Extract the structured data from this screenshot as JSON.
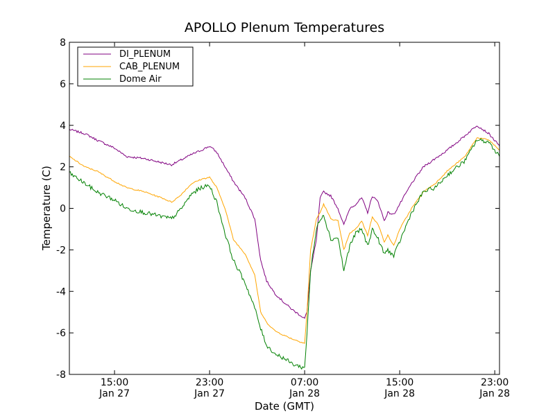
{
  "chart_data": {
    "type": "line",
    "title": "APOLLO Plenum Temperatures",
    "xlabel": "Date (GMT)",
    "ylabel": "Temperature (C)",
    "xlim": [
      -4.8,
      31.4
    ],
    "ylim": [
      -8,
      8
    ],
    "x_unit": "hours since Jan 27 11:00 GMT",
    "yticks": [
      -8,
      -6,
      -4,
      -2,
      0,
      2,
      4,
      6,
      8
    ],
    "ytick_labels": [
      "-8",
      "-6",
      "-4",
      "-2",
      "0",
      "2",
      "4",
      "6",
      "8"
    ],
    "xticks": [
      {
        "x": -1.0,
        "time": "15:00",
        "date": "Jan 27"
      },
      {
        "x": 7.0,
        "time": "23:00",
        "date": "Jan 27"
      },
      {
        "x": 15.0,
        "time": "07:00",
        "date": "Jan 28"
      },
      {
        "x": 23.0,
        "time": "15:00",
        "date": "Jan 28"
      },
      {
        "x": 31.0,
        "time": "23:00",
        "date": "Jan 28"
      }
    ],
    "legend_position": "top-left",
    "series": [
      {
        "name": "DI_PLENUM",
        "color": "#800080",
        "noise": 0.05,
        "points": [
          [
            -4.8,
            3.8
          ],
          [
            -3.5,
            3.6
          ],
          [
            -2.5,
            3.3
          ],
          [
            -1.0,
            2.9
          ],
          [
            0.0,
            2.5
          ],
          [
            1.5,
            2.4
          ],
          [
            3.0,
            2.2
          ],
          [
            3.8,
            2.1
          ],
          [
            4.5,
            2.3
          ],
          [
            5.5,
            2.6
          ],
          [
            6.3,
            2.8
          ],
          [
            7.0,
            3.0
          ],
          [
            7.6,
            2.7
          ],
          [
            8.3,
            2.0
          ],
          [
            9.0,
            1.3
          ],
          [
            10.0,
            0.5
          ],
          [
            10.8,
            -0.5
          ],
          [
            11.3,
            -2.5
          ],
          [
            11.8,
            -3.5
          ],
          [
            12.5,
            -4.1
          ],
          [
            13.2,
            -4.5
          ],
          [
            14.0,
            -4.9
          ],
          [
            14.5,
            -5.1
          ],
          [
            15.0,
            -5.3
          ],
          [
            15.2,
            -5.0
          ],
          [
            15.5,
            -3.0
          ],
          [
            16.0,
            -1.5
          ],
          [
            16.3,
            0.5
          ],
          [
            16.6,
            0.8
          ],
          [
            17.2,
            0.6
          ],
          [
            17.8,
            0.0
          ],
          [
            18.3,
            -0.8
          ],
          [
            18.8,
            0.0
          ],
          [
            19.3,
            0.2
          ],
          [
            19.8,
            0.5
          ],
          [
            20.3,
            -0.2
          ],
          [
            20.7,
            0.6
          ],
          [
            21.2,
            0.3
          ],
          [
            21.7,
            -0.6
          ],
          [
            22.0,
            -0.2
          ],
          [
            22.5,
            -0.3
          ],
          [
            23.0,
            0.2
          ],
          [
            24.0,
            1.2
          ],
          [
            25.0,
            2.0
          ],
          [
            26.0,
            2.4
          ],
          [
            27.0,
            2.8
          ],
          [
            28.5,
            3.5
          ],
          [
            29.5,
            4.0
          ],
          [
            30.5,
            3.6
          ],
          [
            31.4,
            3.0
          ]
        ]
      },
      {
        "name": "CAB_PLENUM",
        "color": "#ffa500",
        "noise": 0.03,
        "points": [
          [
            -4.8,
            2.5
          ],
          [
            -3.5,
            2.0
          ],
          [
            -2.5,
            1.8
          ],
          [
            -1.0,
            1.3
          ],
          [
            0.0,
            1.0
          ],
          [
            1.5,
            0.8
          ],
          [
            3.0,
            0.5
          ],
          [
            3.8,
            0.3
          ],
          [
            4.5,
            0.6
          ],
          [
            5.5,
            1.2
          ],
          [
            6.3,
            1.4
          ],
          [
            7.0,
            1.5
          ],
          [
            7.6,
            1.0
          ],
          [
            8.3,
            0.0
          ],
          [
            9.0,
            -1.5
          ],
          [
            10.0,
            -2.2
          ],
          [
            10.8,
            -3.2
          ],
          [
            11.3,
            -5.0
          ],
          [
            11.8,
            -5.5
          ],
          [
            12.5,
            -5.9
          ],
          [
            13.2,
            -6.1
          ],
          [
            14.0,
            -6.3
          ],
          [
            14.5,
            -6.4
          ],
          [
            15.0,
            -6.5
          ],
          [
            15.2,
            -5.0
          ],
          [
            15.5,
            -2.0
          ],
          [
            16.0,
            -0.5
          ],
          [
            16.3,
            -0.2
          ],
          [
            16.6,
            0.2
          ],
          [
            17.2,
            -0.5
          ],
          [
            17.8,
            -0.6
          ],
          [
            18.3,
            -2.0
          ],
          [
            18.8,
            -1.2
          ],
          [
            19.3,
            -1.0
          ],
          [
            19.8,
            -0.6
          ],
          [
            20.3,
            -1.3
          ],
          [
            20.7,
            -0.4
          ],
          [
            21.2,
            -0.8
          ],
          [
            21.7,
            -1.6
          ],
          [
            22.0,
            -1.3
          ],
          [
            22.5,
            -1.8
          ],
          [
            23.0,
            -1.0
          ],
          [
            24.0,
            0.0
          ],
          [
            25.0,
            0.8
          ],
          [
            26.0,
            1.2
          ],
          [
            27.0,
            1.8
          ],
          [
            28.5,
            2.5
          ],
          [
            29.5,
            3.4
          ],
          [
            30.5,
            3.3
          ],
          [
            31.4,
            2.8
          ]
        ]
      },
      {
        "name": "Dome Air",
        "color": "#008000",
        "noise": 0.1,
        "points": [
          [
            -4.8,
            1.7
          ],
          [
            -3.5,
            1.2
          ],
          [
            -2.5,
            0.8
          ],
          [
            -1.0,
            0.4
          ],
          [
            0.0,
            0.0
          ],
          [
            1.5,
            -0.2
          ],
          [
            3.0,
            -0.4
          ],
          [
            3.8,
            -0.5
          ],
          [
            4.5,
            -0.1
          ],
          [
            5.5,
            0.7
          ],
          [
            6.3,
            1.0
          ],
          [
            7.0,
            1.1
          ],
          [
            7.6,
            0.3
          ],
          [
            8.3,
            -1.2
          ],
          [
            9.0,
            -2.5
          ],
          [
            10.0,
            -3.6
          ],
          [
            10.8,
            -4.8
          ],
          [
            11.3,
            -5.8
          ],
          [
            11.8,
            -6.6
          ],
          [
            12.5,
            -7.0
          ],
          [
            13.2,
            -7.2
          ],
          [
            14.0,
            -7.5
          ],
          [
            14.5,
            -7.6
          ],
          [
            15.0,
            -7.7
          ],
          [
            15.2,
            -6.0
          ],
          [
            15.5,
            -3.0
          ],
          [
            16.0,
            -1.0
          ],
          [
            16.3,
            -0.5
          ],
          [
            16.6,
            -0.3
          ],
          [
            17.2,
            -1.5
          ],
          [
            17.8,
            -1.4
          ],
          [
            18.3,
            -3.0
          ],
          [
            18.8,
            -1.8
          ],
          [
            19.3,
            -1.2
          ],
          [
            19.8,
            -1.0
          ],
          [
            20.3,
            -1.8
          ],
          [
            20.7,
            -1.0
          ],
          [
            21.2,
            -1.5
          ],
          [
            21.7,
            -2.2
          ],
          [
            22.0,
            -2.0
          ],
          [
            22.5,
            -2.3
          ],
          [
            23.0,
            -1.6
          ],
          [
            24.0,
            -0.2
          ],
          [
            25.0,
            0.8
          ],
          [
            26.0,
            1.0
          ],
          [
            27.0,
            1.6
          ],
          [
            28.5,
            2.3
          ],
          [
            29.5,
            3.3
          ],
          [
            30.5,
            3.2
          ],
          [
            31.4,
            2.5
          ]
        ]
      }
    ]
  }
}
